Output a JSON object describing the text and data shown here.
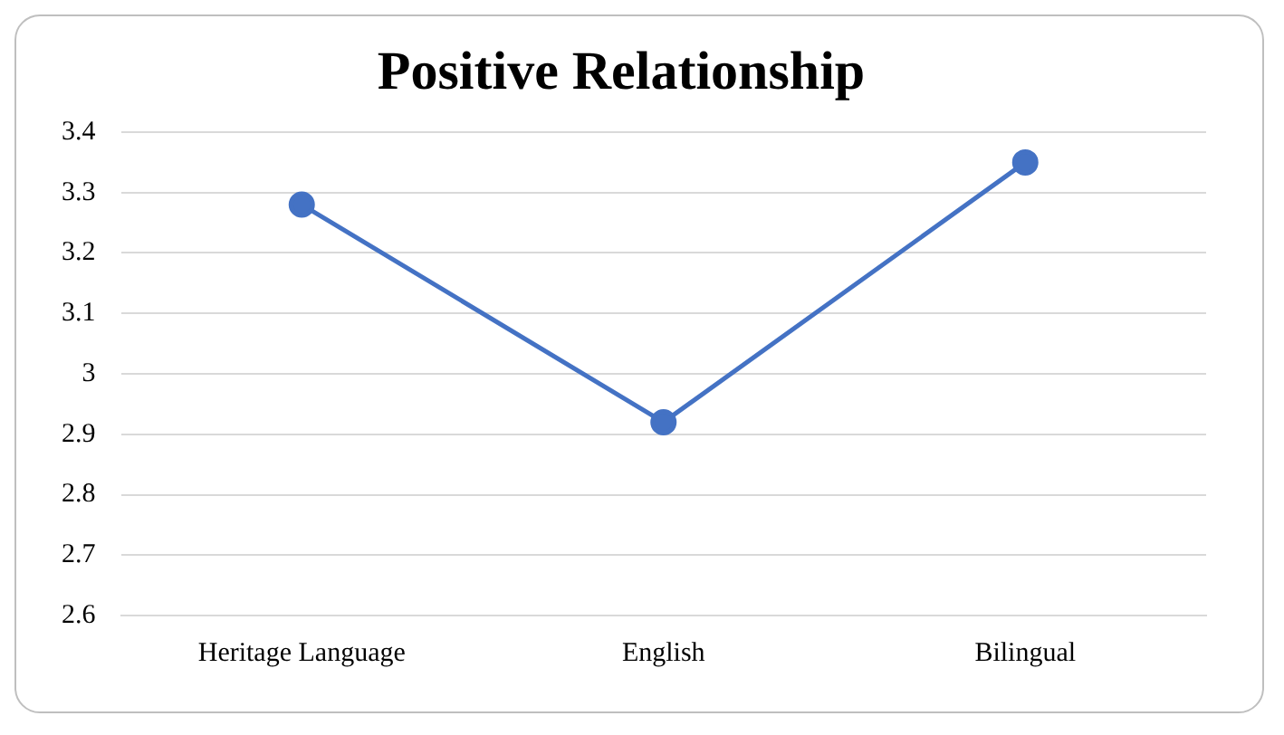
{
  "chart_data": {
    "type": "line",
    "title": "Positive Relationship",
    "categories": [
      "Heritage Language",
      "English",
      "Bilingual"
    ],
    "series": [
      {
        "color": "#4472c4",
        "values": [
          3.28,
          2.92,
          3.35
        ]
      }
    ],
    "ylim": [
      2.6,
      3.4
    ],
    "yticks": [
      2.6,
      2.7,
      2.8,
      2.9,
      3,
      3.1,
      3.2,
      3.3,
      3.4
    ],
    "grid": "y",
    "marker": "circle",
    "line_style": "solid",
    "legend": false
  }
}
